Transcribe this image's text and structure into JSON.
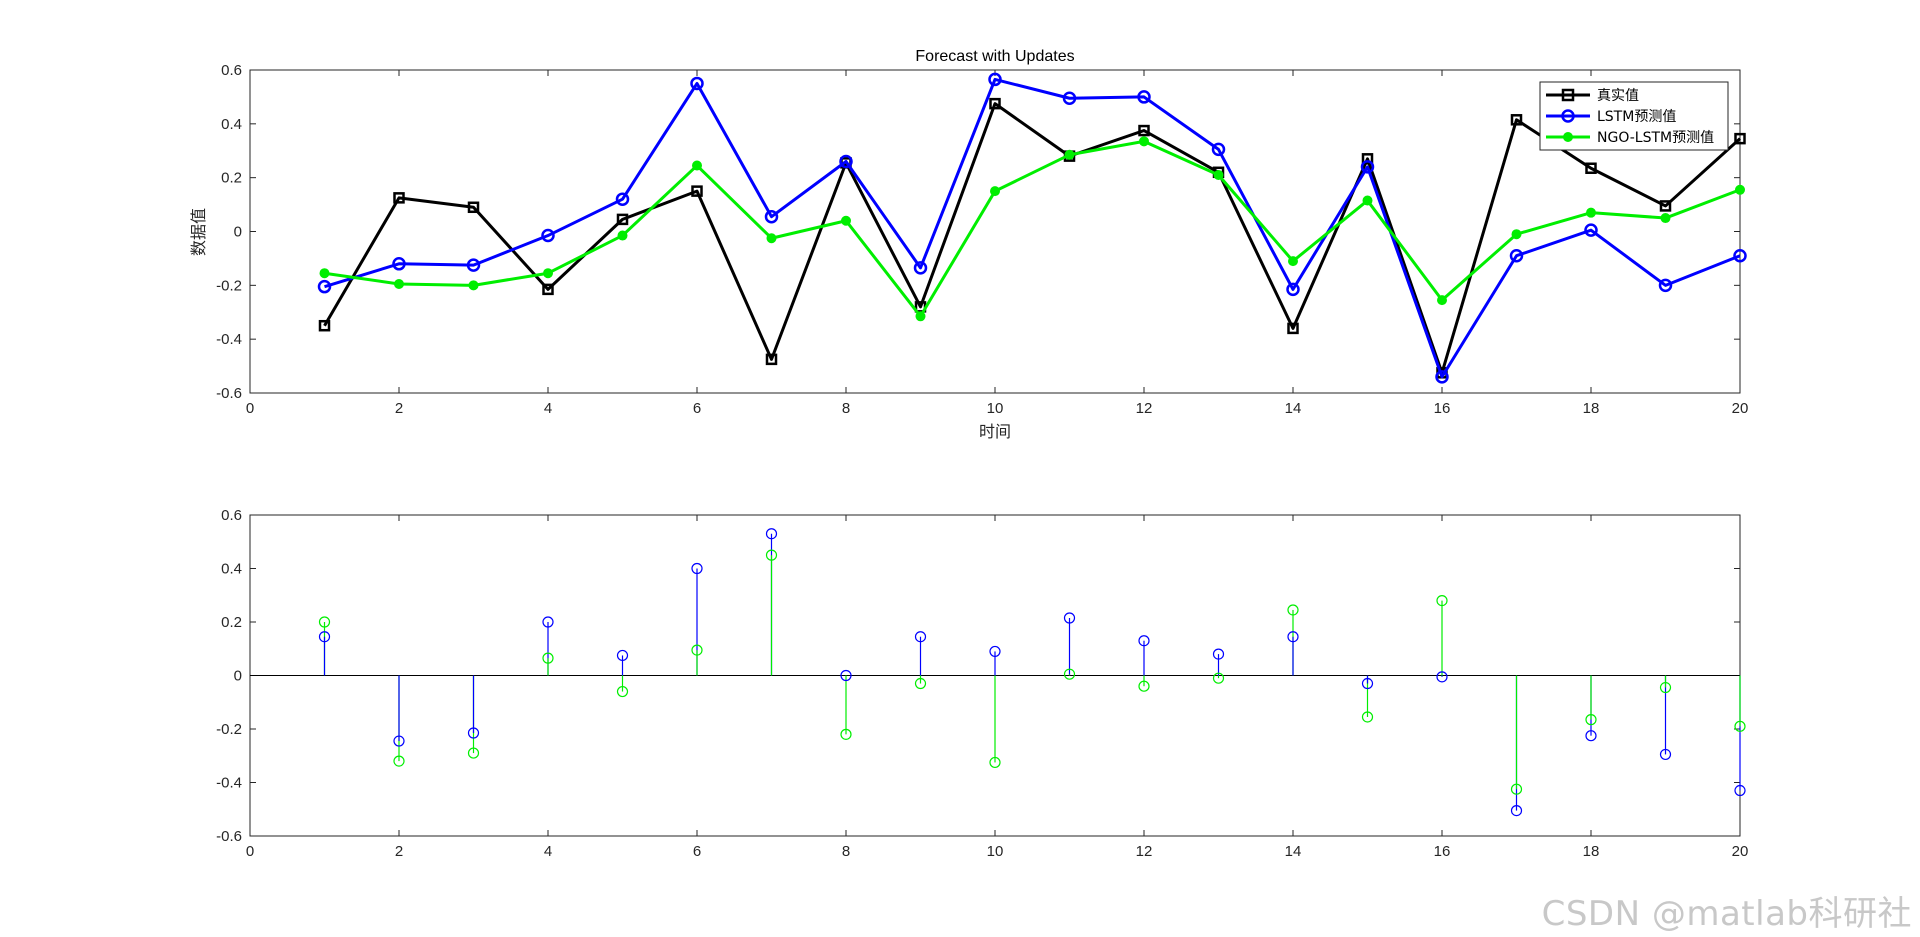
{
  "chart_data": [
    {
      "type": "line",
      "title": "Forecast with Updates",
      "xlabel": "时间",
      "ylabel": "数据值",
      "xlim": [
        0,
        20
      ],
      "ylim": [
        -0.6,
        0.6
      ],
      "xticks": [
        "0",
        "2",
        "4",
        "6",
        "8",
        "10",
        "12",
        "14",
        "16",
        "18",
        "20"
      ],
      "yticks": [
        "-0.6",
        "-0.4",
        "-0.2",
        "0",
        "0.2",
        "0.4",
        "0.6"
      ],
      "legend_position": "top-right",
      "x": [
        1,
        2,
        3,
        4,
        5,
        6,
        7,
        8,
        9,
        10,
        11,
        12,
        13,
        14,
        15,
        16,
        17,
        18,
        19,
        20
      ],
      "series": [
        {
          "name": "真实值",
          "color": "#000000",
          "marker": "square",
          "values": [
            -0.35,
            0.125,
            0.09,
            -0.215,
            0.045,
            0.15,
            -0.475,
            0.255,
            -0.28,
            0.475,
            0.28,
            0.375,
            0.22,
            -0.36,
            0.27,
            -0.525,
            0.415,
            0.235,
            0.095,
            0.345
          ]
        },
        {
          "name": "LSTM预测值",
          "color": "#0000ff",
          "marker": "circle",
          "values": [
            -0.205,
            -0.12,
            -0.125,
            -0.015,
            0.12,
            0.55,
            0.055,
            0.26,
            -0.135,
            0.565,
            0.495,
            0.5,
            0.305,
            -0.215,
            0.24,
            -0.54,
            -0.09,
            0.005,
            -0.2,
            -0.09
          ]
        },
        {
          "name": "NGO-LSTM预测值",
          "color": "#00ee00",
          "marker": "filled-circle",
          "values": [
            -0.155,
            -0.195,
            -0.2,
            -0.155,
            -0.015,
            0.245,
            -0.025,
            0.04,
            -0.315,
            0.15,
            0.285,
            0.335,
            0.21,
            -0.11,
            0.115,
            -0.255,
            -0.01,
            0.07,
            0.05,
            0.155
          ]
        }
      ]
    },
    {
      "type": "stem",
      "xlim": [
        0,
        20
      ],
      "ylim": [
        -0.6,
        0.6
      ],
      "xticks": [
        "0",
        "2",
        "4",
        "6",
        "8",
        "10",
        "12",
        "14",
        "16",
        "18",
        "20"
      ],
      "yticks": [
        "-0.6",
        "-0.4",
        "-0.2",
        "0",
        "0.2",
        "0.4",
        "0.6"
      ],
      "x": [
        1,
        2,
        3,
        4,
        5,
        6,
        7,
        8,
        9,
        10,
        11,
        12,
        13,
        14,
        15,
        16,
        17,
        18,
        19,
        20
      ],
      "series": [
        {
          "color": "#0000ff",
          "values": [
            0.145,
            -0.245,
            -0.215,
            0.2,
            0.075,
            0.4,
            0.53,
            0.0,
            0.145,
            0.09,
            0.215,
            0.13,
            0.08,
            0.145,
            -0.03,
            -0.005,
            -0.505,
            -0.225,
            -0.295,
            -0.43
          ]
        },
        {
          "color": "#00ee00",
          "values": [
            0.2,
            -0.32,
            -0.29,
            0.065,
            -0.06,
            0.095,
            0.45,
            -0.22,
            -0.03,
            -0.325,
            0.005,
            -0.04,
            -0.01,
            0.245,
            -0.155,
            0.28,
            -0.425,
            -0.165,
            -0.045,
            -0.19
          ]
        }
      ]
    }
  ],
  "watermark": "CSDN @matlab科研社"
}
